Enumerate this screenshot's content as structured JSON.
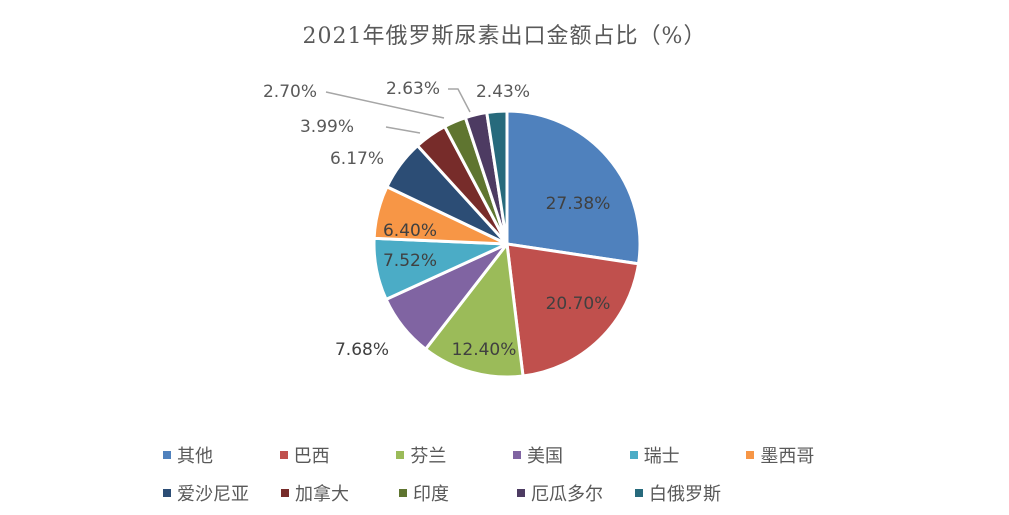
{
  "chart_data": {
    "type": "pie",
    "title": "2021年俄罗斯尿素出口金额占比（%）",
    "categories": [
      "其他",
      "巴西",
      "芬兰",
      "美国",
      "瑞士",
      "墨西哥",
      "爱沙尼亚",
      "加拿大",
      "印度",
      "厄瓜多尔",
      "白俄罗斯"
    ],
    "values": [
      27.38,
      20.7,
      12.4,
      7.68,
      7.52,
      6.4,
      6.17,
      3.99,
      2.7,
      2.63,
      2.43
    ],
    "labels": [
      "27.38%",
      "20.70%",
      "12.40%",
      "7.68%",
      "7.52%",
      "6.40%",
      "6.17%",
      "3.99%",
      "2.70%",
      "2.63%",
      "2.43%"
    ],
    "colors": [
      "#4F81BD",
      "#C0504D",
      "#9BBB59",
      "#8064A2",
      "#4BACC6",
      "#F79646",
      "#2C4D75",
      "#772C2A",
      "#5F7530",
      "#4D3B62",
      "#276A7C"
    ],
    "start_angle": "12 o'clock, clockwise",
    "legend_position": "bottom"
  },
  "title": "2021年俄罗斯尿素出口金额占比（%）",
  "legend": {
    "row1": [
      "其他",
      "巴西",
      "芬兰",
      "美国",
      "瑞士",
      "墨西哥"
    ],
    "row2": [
      "爱沙尼亚",
      "加拿大",
      "印度",
      "厄瓜多尔",
      "白俄罗斯"
    ]
  }
}
